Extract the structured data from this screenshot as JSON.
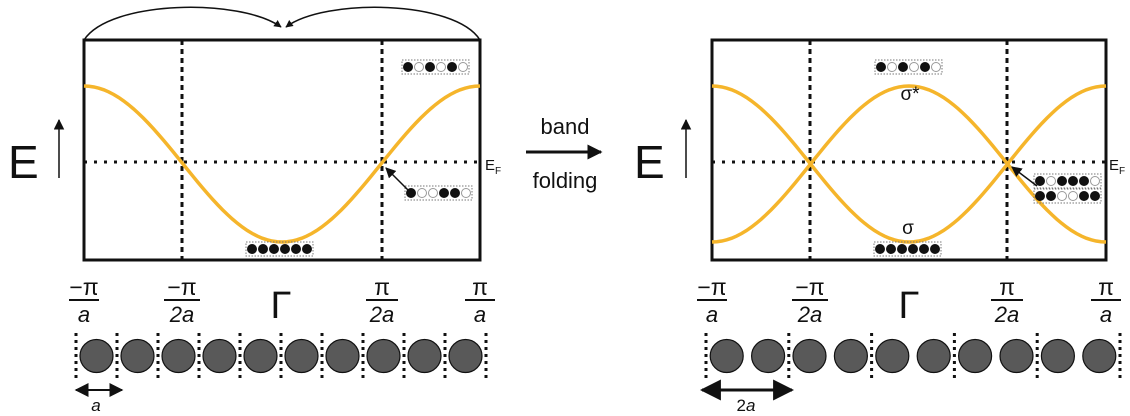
{
  "colors": {
    "band": "#F5B52B",
    "ink": "#111111",
    "atom": "#595959",
    "panel_bg": "#ffffff"
  },
  "left": {
    "energy_label": "E",
    "fermi_label": "E",
    "fermi_subscript": "F",
    "gamma_label": "Γ",
    "ticks": [
      {
        "num": "−π",
        "den": "a"
      },
      {
        "num": "−π",
        "den": "2a"
      },
      {
        "num": "π",
        "den": "2a"
      },
      {
        "num": "π",
        "den": "a"
      }
    ],
    "spacing_label": "a",
    "atom_count": 10
  },
  "middle": {
    "line1": "band",
    "line2": "folding"
  },
  "right": {
    "energy_label": "E",
    "fermi_label": "E",
    "fermi_subscript": "F",
    "gamma_label": "Γ",
    "sigma_star_label": "σ*",
    "sigma_label": "σ",
    "ticks": [
      {
        "num": "−π",
        "den": "a"
      },
      {
        "num": "−π",
        "den": "2a"
      },
      {
        "num": "π",
        "den": "2a"
      },
      {
        "num": "π",
        "den": "a"
      }
    ],
    "spacing_label": "2a",
    "atom_count": 10
  }
}
